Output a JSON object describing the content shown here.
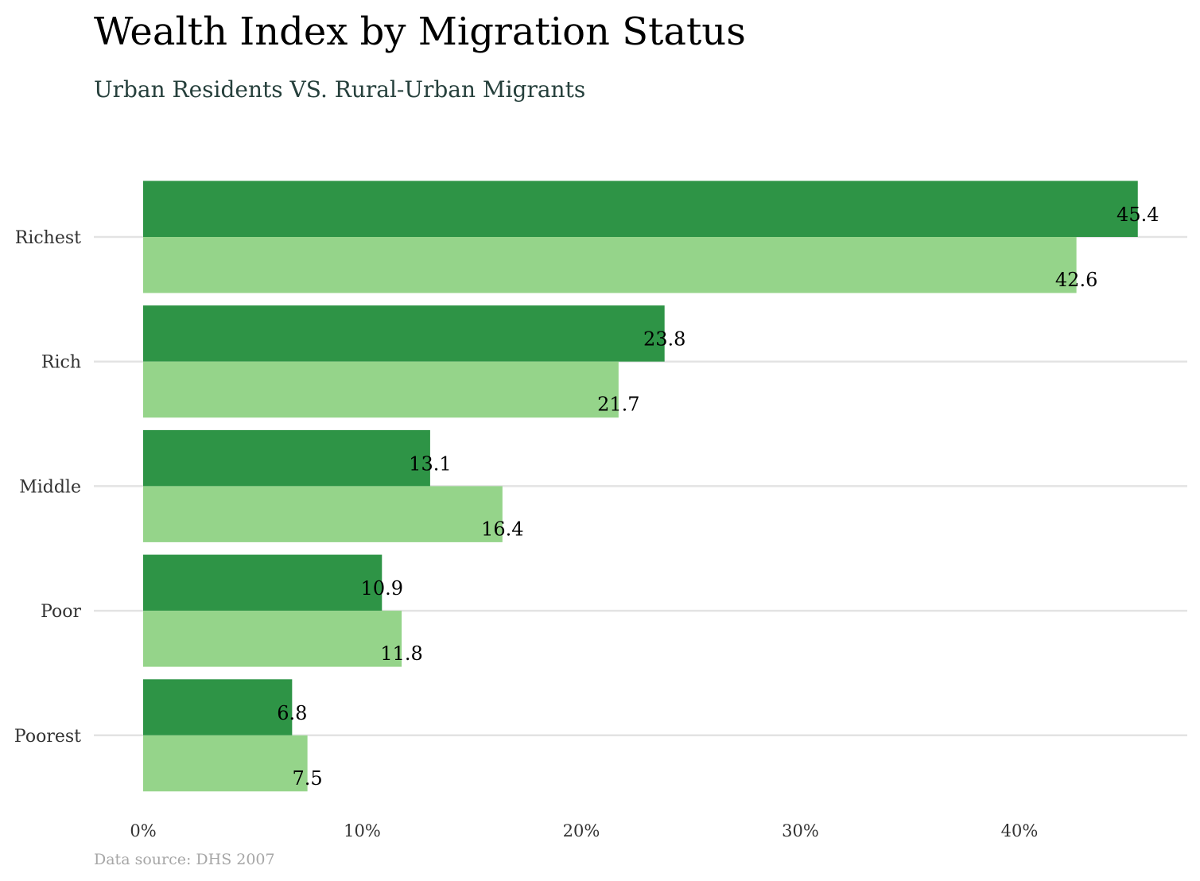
{
  "chart_data": {
    "type": "bar",
    "orientation": "horizontal",
    "title": "Wealth Index by Migration Status",
    "subtitle": "Urban Residents VS. Rural-Urban Migrants",
    "source": "Data source: DHS 2007",
    "categories": [
      "Richest",
      "Rich",
      "Middle",
      "Poor",
      "Poorest"
    ],
    "series": [
      {
        "color": "#2e9446",
        "values": [
          45.4,
          23.8,
          13.1,
          10.9,
          6.8
        ]
      },
      {
        "color": "#95d48a",
        "values": [
          42.6,
          21.7,
          16.4,
          11.8,
          7.5
        ]
      }
    ],
    "x_ticks": [
      "0%",
      "10%",
      "20%",
      "30%",
      "40%"
    ],
    "x_tick_values": [
      0,
      10,
      20,
      30,
      40
    ],
    "xlim": [
      0,
      47.7
    ],
    "grid": true,
    "legend": "none"
  }
}
